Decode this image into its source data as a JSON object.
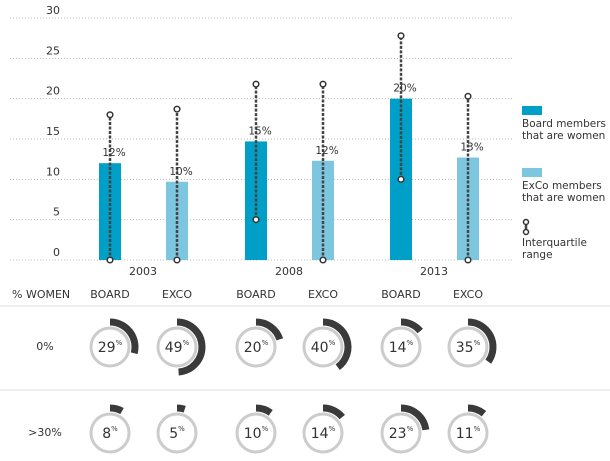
{
  "chart_data": {
    "type": "bar",
    "categories": [
      "2003",
      "2008",
      "2013"
    ],
    "series": [
      {
        "name": "Board members that are women",
        "color": "#009fc7",
        "values": [
          12,
          14.7,
          20
        ],
        "value_labels": [
          "12%",
          "15%",
          "20%"
        ],
        "iqr": [
          [
            0,
            18
          ],
          [
            5,
            21.8
          ],
          [
            10,
            27.8
          ]
        ]
      },
      {
        "name": "ExCo members that are women",
        "color": "#7cc6df",
        "values": [
          9.7,
          12.3,
          12.7
        ],
        "value_labels": [
          "10%",
          "12%",
          "13%"
        ],
        "iqr": [
          [
            0,
            18.7
          ],
          [
            0,
            21.8
          ],
          [
            0,
            20.3
          ]
        ]
      }
    ],
    "iqr_name": "Interquartile range",
    "ylim": [
      0,
      30
    ],
    "yticks": [
      0,
      5,
      10,
      15,
      20,
      25,
      30
    ],
    "grid": true
  },
  "gauges": {
    "header": "% WOMEN",
    "columns": [
      "BOARD",
      "EXCO",
      "BOARD",
      "EXCO",
      "BOARD",
      "EXCO"
    ],
    "rows": [
      {
        "label": "0%",
        "values": [
          29,
          49,
          20,
          40,
          14,
          35
        ],
        "value_labels": [
          "29%",
          "49%",
          "20%",
          "40%",
          "14%",
          "35%"
        ]
      },
      {
        "label": ">30%",
        "values": [
          8,
          5,
          10,
          14,
          23,
          11
        ],
        "value_labels": [
          "8%",
          "5%",
          "10%",
          "14%",
          "23%",
          "11%"
        ]
      }
    ]
  }
}
